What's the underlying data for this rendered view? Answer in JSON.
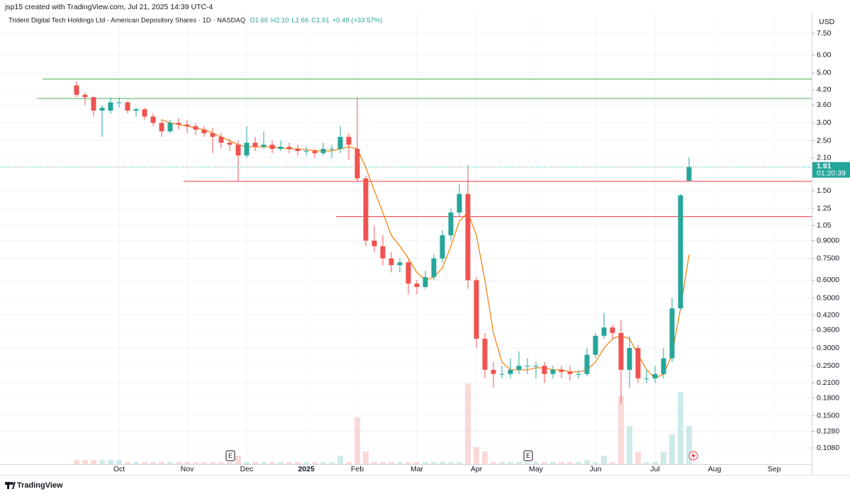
{
  "chart_data": {
    "type": "candlestick",
    "attribution": "jsp15 created with TradingView.com, Jul 21, 2025 14:39 UTC-4",
    "title": "Trident Digital Tech Holdings Ltd - American Depository Shares · 1D · NASDAQ",
    "ohlc_labels": [
      "O1.66",
      "H2.10",
      "L1.66",
      "C1.91",
      "+0.48 (+33.57%)"
    ],
    "currency": "USD",
    "brand": "TradingView",
    "last_price": {
      "value": 1.91,
      "label": "1.91"
    },
    "countdown": "01:20:39",
    "log_scale": true,
    "grid": true,
    "up_color": "#26a69a",
    "down_color": "#ef5350",
    "ylim": [
      0.0914,
      9.12
    ],
    "yticks": [
      {
        "value": 7.5,
        "label": "7.50"
      },
      {
        "value": 6,
        "label": "6.00"
      },
      {
        "value": 5,
        "label": "5.00"
      },
      {
        "value": 4.2,
        "label": "4.20"
      },
      {
        "value": 3.6,
        "label": "3.60"
      },
      {
        "value": 3,
        "label": "3.00"
      },
      {
        "value": 2.5,
        "label": "2.50"
      },
      {
        "value": 2.1,
        "label": "2.10"
      },
      {
        "value": 1.5,
        "label": "1.50"
      },
      1.25,
      1.05,
      {
        "value": 0.9,
        "label": "0.9000"
      },
      {
        "value": 0.75,
        "label": "0.7500"
      },
      {
        "value": 0.6,
        "label": "0.6000"
      },
      {
        "value": 0.5,
        "label": "0.5000"
      },
      {
        "value": 0.42,
        "label": "0.4200"
      },
      {
        "value": 0.36,
        "label": "0.3600"
      },
      {
        "value": 0.3,
        "label": "0.3000"
      },
      {
        "value": 0.25,
        "label": "0.2500"
      },
      {
        "value": 0.21,
        "label": "0.2100"
      },
      {
        "value": 0.18,
        "label": "0.1800"
      },
      {
        "value": 0.15,
        "label": "0.1500"
      },
      {
        "value": 0.128,
        "label": "0.1280"
      },
      {
        "value": 0.108,
        "label": "0.1080"
      }
    ],
    "categories": [
      null,
      null,
      null,
      null,
      null,
      "Oct",
      null,
      null,
      null,
      null,
      null,
      null,
      null,
      "Nov",
      null,
      null,
      null,
      null,
      null,
      null,
      "Dec",
      null,
      null,
      null,
      null,
      null,
      null,
      "2025",
      null,
      null,
      null,
      null,
      null,
      "Feb",
      null,
      null,
      null,
      null,
      null,
      null,
      "Mar",
      null,
      null,
      null,
      null,
      null,
      null,
      "Apr",
      null,
      null,
      null,
      null,
      null,
      null,
      "May",
      null,
      null,
      null,
      null,
      null,
      null,
      "Jun",
      null,
      null,
      null,
      null,
      null,
      null,
      "Jul",
      null,
      null,
      null,
      null,
      null,
      null,
      "Aug",
      null,
      null,
      null,
      null,
      null,
      null,
      "Sep",
      null,
      null,
      null,
      null
    ],
    "open": [
      4.4,
      4.0,
      3.9,
      3.4,
      3.4,
      3.7,
      3.7,
      3.4,
      3.45,
      3.2,
      3.0,
      2.75,
      3.0,
      2.95,
      2.9,
      2.8,
      2.7,
      2.6,
      2.45,
      2.4,
      2.15,
      2.45,
      2.35,
      2.4,
      2.3,
      2.35,
      2.3,
      2.25,
      2.25,
      2.2,
      2.3,
      2.3,
      2.6,
      2.3,
      1.7,
      0.9,
      0.85,
      0.75,
      0.7,
      0.72,
      0.58,
      0.56,
      0.62,
      0.75,
      0.95,
      1.2,
      1.45,
      0.6,
      0.33,
      0.24,
      0.23,
      0.23,
      0.24,
      0.25,
      0.25,
      0.25,
      0.23,
      0.24,
      0.235,
      0.23,
      0.23,
      0.28,
      0.34,
      0.37,
      0.35,
      0.24,
      0.3,
      0.22,
      0.22,
      0.23,
      0.27,
      0.45,
      1.66,
      null,
      null,
      null,
      null,
      null,
      null,
      null,
      null,
      null,
      null,
      null,
      null,
      null,
      null
    ],
    "high": [
      4.6,
      4.1,
      3.95,
      3.6,
      3.9,
      3.9,
      3.75,
      3.5,
      3.5,
      3.3,
      3.1,
      3.1,
      3.15,
      3.1,
      3.0,
      2.9,
      2.85,
      2.7,
      2.55,
      2.5,
      2.9,
      2.6,
      2.75,
      2.5,
      2.5,
      2.45,
      2.4,
      2.35,
      2.3,
      2.45,
      2.4,
      2.9,
      2.7,
      3.9,
      1.75,
      1.05,
      0.95,
      0.8,
      0.75,
      0.74,
      0.6,
      0.66,
      0.78,
      1.0,
      1.25,
      1.6,
      1.95,
      0.62,
      0.35,
      0.26,
      0.25,
      0.27,
      0.29,
      0.27,
      0.26,
      0.26,
      0.25,
      0.25,
      0.25,
      0.24,
      0.3,
      0.35,
      0.43,
      0.38,
      0.4,
      0.34,
      0.31,
      0.24,
      0.25,
      0.3,
      0.5,
      1.45,
      2.1,
      null,
      null,
      null,
      null,
      null,
      null,
      null,
      null,
      null,
      null,
      null,
      null,
      null,
      null
    ],
    "low": [
      3.9,
      3.6,
      3.2,
      2.6,
      3.3,
      3.5,
      3.3,
      3.2,
      3.1,
      2.9,
      2.6,
      2.7,
      2.8,
      2.7,
      2.65,
      2.6,
      2.2,
      2.3,
      2.25,
      1.65,
      2.1,
      2.25,
      2.3,
      2.2,
      2.25,
      2.2,
      2.15,
      2.15,
      2.1,
      2.15,
      2.1,
      2.2,
      2.05,
      1.65,
      0.85,
      0.8,
      0.7,
      0.65,
      0.65,
      0.52,
      0.52,
      0.55,
      0.6,
      0.72,
      0.9,
      1.15,
      0.55,
      0.3,
      0.22,
      0.2,
      0.22,
      0.22,
      0.23,
      0.23,
      0.22,
      0.21,
      0.22,
      0.22,
      0.215,
      0.22,
      0.225,
      0.27,
      0.33,
      0.33,
      0.17,
      0.2,
      0.21,
      0.21,
      0.21,
      0.22,
      0.26,
      0.44,
      1.66,
      null,
      null,
      null,
      null,
      null,
      null,
      null,
      null,
      null,
      null,
      null,
      null,
      null,
      null
    ],
    "close": [
      4.0,
      3.9,
      3.4,
      3.5,
      3.7,
      3.7,
      3.4,
      3.45,
      3.2,
      3.0,
      2.75,
      3.0,
      2.95,
      2.9,
      2.8,
      2.7,
      2.6,
      2.45,
      2.4,
      2.15,
      2.45,
      2.35,
      2.4,
      2.3,
      2.35,
      2.3,
      2.25,
      2.25,
      2.2,
      2.3,
      2.3,
      2.6,
      2.4,
      1.7,
      0.9,
      0.85,
      0.75,
      0.7,
      0.72,
      0.58,
      0.56,
      0.62,
      0.75,
      0.95,
      1.2,
      1.45,
      0.6,
      0.33,
      0.24,
      0.23,
      0.23,
      0.24,
      0.25,
      0.25,
      0.25,
      0.23,
      0.24,
      0.235,
      0.23,
      0.23,
      0.28,
      0.34,
      0.37,
      0.35,
      0.24,
      0.3,
      0.22,
      0.22,
      0.23,
      0.27,
      0.45,
      1.43,
      1.91,
      null,
      null,
      null,
      null,
      null,
      null,
      null,
      null,
      null,
      null,
      null,
      null,
      null,
      null
    ],
    "volume": [
      1,
      1,
      1,
      1,
      1,
      1,
      0.5,
      0.5,
      0.5,
      0.5,
      0.5,
      0.5,
      0.5,
      0.5,
      0.5,
      0.5,
      0.5,
      0.5,
      0.5,
      2,
      0.5,
      0.5,
      0.5,
      0.5,
      0.5,
      0.5,
      0.5,
      0.5,
      0.5,
      0.5,
      0.5,
      2,
      0.5,
      11,
      3,
      0.5,
      0.5,
      0.5,
      0.5,
      0.5,
      0.5,
      0.5,
      0.5,
      0.5,
      0.5,
      0.5,
      19,
      4,
      3,
      0.5,
      0.5,
      0.5,
      0.5,
      0.5,
      0.5,
      0.5,
      0.5,
      0.5,
      0.5,
      0.5,
      1,
      0.5,
      2,
      0.5,
      16,
      9,
      3,
      0.5,
      0.5,
      3,
      7,
      17,
      9,
      null,
      null,
      null,
      null,
      null,
      null,
      null,
      null,
      null,
      null,
      null,
      null,
      null,
      null
    ],
    "ma": {
      "color": "#f57c00",
      "values": [
        null,
        null,
        null,
        null,
        null,
        null,
        null,
        null,
        null,
        null,
        3.1,
        3.0,
        2.95,
        2.9,
        2.85,
        2.8,
        2.7,
        2.6,
        2.5,
        2.4,
        2.35,
        2.35,
        2.35,
        2.35,
        2.32,
        2.3,
        2.3,
        2.28,
        2.26,
        2.25,
        2.25,
        2.3,
        2.35,
        2.3,
        1.9,
        1.5,
        1.2,
        0.95,
        0.85,
        0.75,
        0.65,
        0.6,
        0.62,
        0.68,
        0.85,
        1.1,
        1.2,
        0.95,
        0.6,
        0.35,
        0.26,
        0.24,
        0.24,
        0.24,
        0.245,
        0.245,
        0.24,
        0.24,
        0.235,
        0.235,
        0.24,
        0.26,
        0.3,
        0.33,
        0.34,
        0.33,
        0.28,
        0.24,
        0.22,
        0.23,
        0.28,
        0.45,
        0.78,
        null,
        null,
        null,
        null,
        null,
        null,
        null,
        null,
        null,
        null,
        null,
        null,
        null,
        null
      ]
    },
    "hlines": [
      {
        "value": 4.7,
        "color": "#4caf50"
      },
      {
        "value": 3.85,
        "color": "#4caf50"
      },
      {
        "value": 1.65,
        "color": "#f23645"
      },
      {
        "value": 1.15,
        "color": "#f23645"
      }
    ],
    "events": [
      "E",
      "E"
    ]
  }
}
